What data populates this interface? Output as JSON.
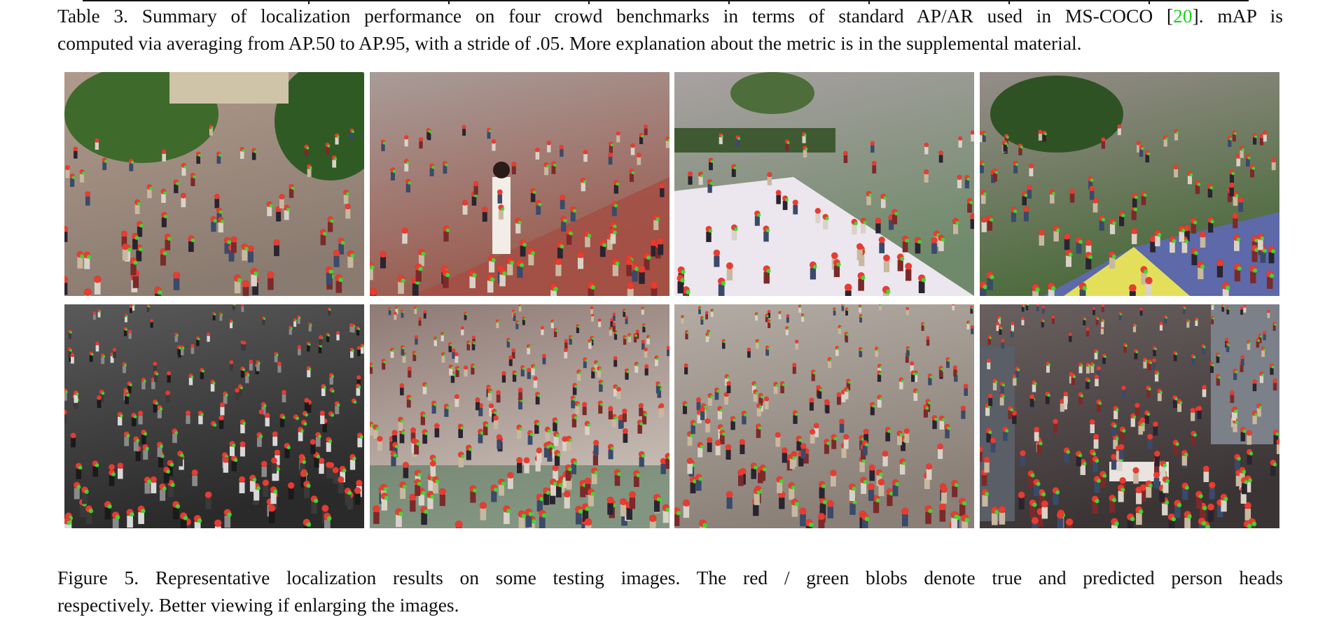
{
  "table_caption": {
    "line1_before_cite": "Table 3. Summary of localization performance on four crowd benchmarks in terms of standard AP/AR used in MS-COCO [",
    "cite": "20",
    "line1_after_cite": "].  mAP is",
    "line2": "computed via averaging from AP.50 to AP.95, with a stride of .05. More explanation about the metric is in the supplemental material."
  },
  "figure_caption": {
    "line1": "Figure 5. Representative localization results on some testing images.  The red / green blobs denote true and predicted person heads",
    "line2": "respectively. Better viewing if enlarging the images."
  },
  "colors": {
    "true_blob": "#e8281e",
    "predicted_blob": "#2ee82a",
    "citation_link": "#1bd01b"
  },
  "figure": {
    "rows": 2,
    "columns": 4,
    "panels": [
      {
        "row": 1,
        "col": 1,
        "scene": "plaza-trees-sparse",
        "palette": "color",
        "crowd_level": 0.25
      },
      {
        "row": 1,
        "col": 2,
        "scene": "tiled-square-woman",
        "palette": "color",
        "crowd_level": 0.3
      },
      {
        "row": 1,
        "col": 3,
        "scene": "courtyard-white-roof",
        "palette": "color",
        "crowd_level": 0.2
      },
      {
        "row": 1,
        "col": 4,
        "scene": "square-umbrella",
        "palette": "color",
        "crowd_level": 0.35
      },
      {
        "row": 2,
        "col": 1,
        "scene": "historic-crowd-bw",
        "palette": "grayscale",
        "crowd_level": 0.85
      },
      {
        "row": 2,
        "col": 2,
        "scene": "stadium-crowd",
        "palette": "color",
        "crowd_level": 1.0
      },
      {
        "row": 2,
        "col": 3,
        "scene": "aerial-crowd",
        "palette": "color",
        "crowd_level": 0.8
      },
      {
        "row": 2,
        "col": 4,
        "scene": "street-crowd-cars",
        "palette": "color",
        "crowd_level": 0.9
      }
    ]
  }
}
